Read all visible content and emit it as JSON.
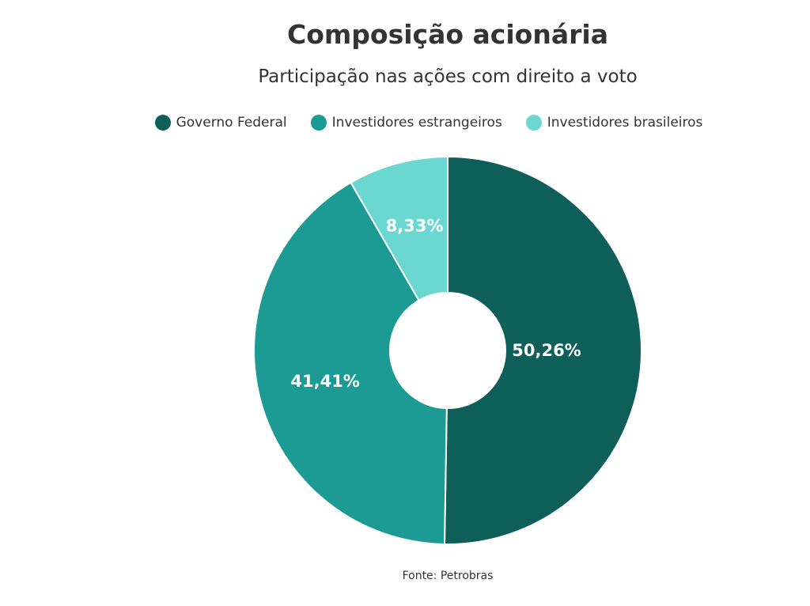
{
  "title": "Composição acionária",
  "subtitle": "Participação nas ações com direito a voto",
  "source": "Fonte: Petrobras",
  "chart_data": {
    "type": "pie",
    "donut": true,
    "legend_position": "top",
    "slices": [
      {
        "name": "Governo Federal",
        "value": 50.26,
        "label": "50,26%",
        "color": "#0e5e5a"
      },
      {
        "name": "Investidores estrangeiros",
        "value": 41.41,
        "label": "41,41%",
        "color": "#1b9b93"
      },
      {
        "name": "Investidores brasileiros",
        "value": 8.33,
        "label": "8,33%",
        "color": "#6ad8d1"
      }
    ]
  }
}
